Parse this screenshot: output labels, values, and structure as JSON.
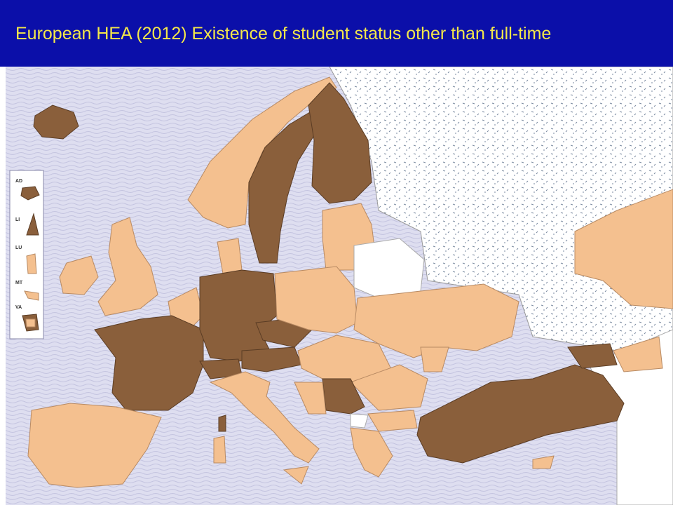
{
  "title": "European HEA (2012) Existence of student status other than full-time",
  "inset_labels": [
    "AD",
    "LI",
    "LU",
    "MT",
    "VA"
  ]
}
